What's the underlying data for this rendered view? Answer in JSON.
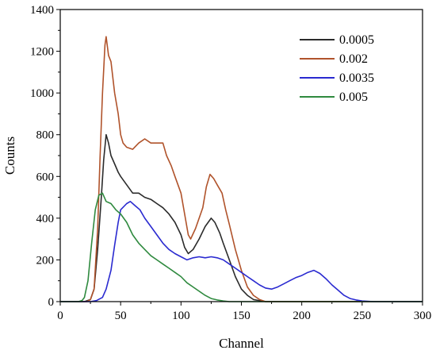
{
  "chart_data": {
    "type": "line",
    "title": "",
    "xlabel": "Channel",
    "ylabel": "Counts",
    "xlim": [
      0,
      300
    ],
    "ylim": [
      0,
      1400
    ],
    "xticks": [
      0,
      50,
      100,
      150,
      200,
      250,
      300
    ],
    "yticks": [
      0,
      200,
      400,
      600,
      800,
      1000,
      1200,
      1400
    ],
    "grid": false,
    "legend_position": "top-right",
    "series": [
      {
        "name": "0.0005",
        "color": "#2b2b2b",
        "points": [
          [
            0,
            0
          ],
          [
            20,
            0
          ],
          [
            25,
            10
          ],
          [
            28,
            60
          ],
          [
            31,
            250
          ],
          [
            34,
            500
          ],
          [
            36,
            680
          ],
          [
            38,
            800
          ],
          [
            40,
            760
          ],
          [
            42,
            700
          ],
          [
            45,
            660
          ],
          [
            48,
            620
          ],
          [
            50,
            600
          ],
          [
            55,
            560
          ],
          [
            60,
            520
          ],
          [
            65,
            520
          ],
          [
            70,
            500
          ],
          [
            75,
            490
          ],
          [
            80,
            470
          ],
          [
            85,
            450
          ],
          [
            90,
            420
          ],
          [
            95,
            380
          ],
          [
            100,
            320
          ],
          [
            103,
            260
          ],
          [
            106,
            230
          ],
          [
            110,
            250
          ],
          [
            115,
            300
          ],
          [
            120,
            360
          ],
          [
            125,
            400
          ],
          [
            128,
            380
          ],
          [
            132,
            330
          ],
          [
            135,
            280
          ],
          [
            140,
            200
          ],
          [
            145,
            120
          ],
          [
            150,
            60
          ],
          [
            155,
            30
          ],
          [
            160,
            10
          ],
          [
            170,
            0
          ],
          [
            300,
            0
          ]
        ]
      },
      {
        "name": "0.002",
        "color": "#b0532b",
        "points": [
          [
            0,
            0
          ],
          [
            22,
            0
          ],
          [
            25,
            10
          ],
          [
            28,
            60
          ],
          [
            31,
            350
          ],
          [
            33,
            700
          ],
          [
            35,
            1000
          ],
          [
            37,
            1230
          ],
          [
            38,
            1270
          ],
          [
            40,
            1180
          ],
          [
            42,
            1150
          ],
          [
            45,
            1000
          ],
          [
            48,
            900
          ],
          [
            50,
            800
          ],
          [
            52,
            760
          ],
          [
            55,
            740
          ],
          [
            60,
            730
          ],
          [
            65,
            760
          ],
          [
            70,
            780
          ],
          [
            75,
            760
          ],
          [
            80,
            760
          ],
          [
            85,
            760
          ],
          [
            88,
            700
          ],
          [
            92,
            650
          ],
          [
            95,
            600
          ],
          [
            100,
            520
          ],
          [
            103,
            420
          ],
          [
            106,
            320
          ],
          [
            108,
            300
          ],
          [
            112,
            350
          ],
          [
            115,
            400
          ],
          [
            118,
            450
          ],
          [
            121,
            550
          ],
          [
            124,
            610
          ],
          [
            127,
            590
          ],
          [
            130,
            560
          ],
          [
            134,
            520
          ],
          [
            137,
            440
          ],
          [
            140,
            370
          ],
          [
            145,
            250
          ],
          [
            150,
            150
          ],
          [
            155,
            70
          ],
          [
            160,
            30
          ],
          [
            165,
            10
          ],
          [
            170,
            0
          ],
          [
            300,
            0
          ]
        ]
      },
      {
        "name": "0.0035",
        "color": "#2a2ad0",
        "points": [
          [
            0,
            0
          ],
          [
            25,
            0
          ],
          [
            30,
            5
          ],
          [
            35,
            20
          ],
          [
            38,
            60
          ],
          [
            42,
            150
          ],
          [
            45,
            270
          ],
          [
            48,
            380
          ],
          [
            50,
            440
          ],
          [
            55,
            470
          ],
          [
            58,
            480
          ],
          [
            62,
            460
          ],
          [
            66,
            440
          ],
          [
            70,
            400
          ],
          [
            75,
            360
          ],
          [
            80,
            320
          ],
          [
            85,
            280
          ],
          [
            90,
            250
          ],
          [
            95,
            230
          ],
          [
            100,
            215
          ],
          [
            105,
            200
          ],
          [
            110,
            210
          ],
          [
            115,
            215
          ],
          [
            120,
            210
          ],
          [
            125,
            215
          ],
          [
            130,
            210
          ],
          [
            135,
            200
          ],
          [
            140,
            180
          ],
          [
            145,
            160
          ],
          [
            150,
            140
          ],
          [
            155,
            120
          ],
          [
            160,
            100
          ],
          [
            165,
            80
          ],
          [
            170,
            65
          ],
          [
            175,
            60
          ],
          [
            180,
            70
          ],
          [
            185,
            85
          ],
          [
            190,
            100
          ],
          [
            195,
            115
          ],
          [
            200,
            125
          ],
          [
            205,
            140
          ],
          [
            210,
            150
          ],
          [
            215,
            135
          ],
          [
            220,
            110
          ],
          [
            225,
            80
          ],
          [
            230,
            55
          ],
          [
            235,
            30
          ],
          [
            240,
            15
          ],
          [
            245,
            8
          ],
          [
            250,
            3
          ],
          [
            260,
            0
          ],
          [
            300,
            0
          ]
        ]
      },
      {
        "name": "0.005",
        "color": "#2f8a3f",
        "points": [
          [
            0,
            0
          ],
          [
            15,
            0
          ],
          [
            18,
            5
          ],
          [
            20,
            20
          ],
          [
            23,
            100
          ],
          [
            26,
            280
          ],
          [
            29,
            440
          ],
          [
            32,
            510
          ],
          [
            35,
            520
          ],
          [
            38,
            480
          ],
          [
            42,
            470
          ],
          [
            46,
            440
          ],
          [
            50,
            420
          ],
          [
            55,
            380
          ],
          [
            60,
            320
          ],
          [
            65,
            280
          ],
          [
            70,
            250
          ],
          [
            75,
            220
          ],
          [
            80,
            200
          ],
          [
            85,
            180
          ],
          [
            90,
            160
          ],
          [
            95,
            140
          ],
          [
            100,
            120
          ],
          [
            105,
            90
          ],
          [
            110,
            70
          ],
          [
            115,
            50
          ],
          [
            120,
            30
          ],
          [
            125,
            15
          ],
          [
            130,
            8
          ],
          [
            135,
            3
          ],
          [
            140,
            0
          ],
          [
            300,
            0
          ]
        ]
      }
    ]
  }
}
